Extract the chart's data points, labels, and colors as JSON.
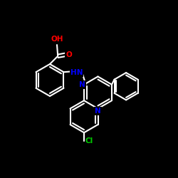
{
  "background_color": "#000000",
  "bond_color": "#ffffff",
  "atom_colors": {
    "N": "#0000ff",
    "O": "#ff0000",
    "Cl": "#00cc00",
    "H": "#ffffff",
    "C": "#ffffff"
  },
  "bond_width": 1.5,
  "figsize": [
    2.5,
    2.5
  ],
  "dpi": 100
}
